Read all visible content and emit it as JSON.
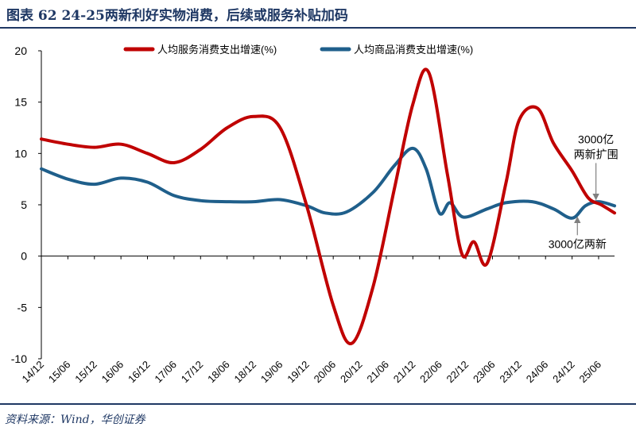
{
  "figure": {
    "title": "图表 62    24-25两新利好实物消费，后续或服务补贴加码",
    "source": "资料来源：Wind，华创证券",
    "accent_color": "#1f3864"
  },
  "chart_data": {
    "type": "line",
    "title": "",
    "xlabel": "",
    "ylabel": "",
    "ylim": [
      -10,
      20
    ],
    "yticks": [
      "20",
      "15",
      "10",
      "5",
      "0",
      "-5",
      "-10"
    ],
    "x_tick_labels": [
      "14/12",
      "15/06",
      "15/12",
      "16/06",
      "16/12",
      "17/06",
      "17/12",
      "18/06",
      "18/12",
      "19/06",
      "19/12",
      "20/06",
      "20/12",
      "21/06",
      "21/12",
      "22/06",
      "22/12",
      "23/06",
      "23/12",
      "24/06",
      "24/12",
      "25/06"
    ],
    "x_axis_start": 0,
    "x_axis_end": 21.6,
    "grid": false,
    "legend_position": "top",
    "series": [
      {
        "name": "人均服务消费支出增速(%)",
        "color": "#c00000",
        "points": [
          [
            0,
            11.4
          ],
          [
            1,
            10.9
          ],
          [
            2,
            10.6
          ],
          [
            3,
            10.9
          ],
          [
            4,
            10.0
          ],
          [
            5,
            9.1
          ],
          [
            6,
            10.4
          ],
          [
            7,
            12.5
          ],
          [
            8,
            13.6
          ],
          [
            9,
            12.5
          ],
          [
            10,
            4.9
          ],
          [
            11,
            -4.8
          ],
          [
            11.7,
            -8.5
          ],
          [
            12.5,
            -3.0
          ],
          [
            13.3,
            6.5
          ],
          [
            14,
            14.8
          ],
          [
            14.6,
            17.9
          ],
          [
            15.3,
            8.0
          ],
          [
            15.85,
            0.2
          ],
          [
            16.3,
            1.4
          ],
          [
            16.8,
            -0.7
          ],
          [
            17.5,
            7.0
          ],
          [
            18,
            13.2
          ],
          [
            18.7,
            14.4
          ],
          [
            19.3,
            11.0
          ],
          [
            20,
            8.3
          ],
          [
            20.6,
            5.7
          ],
          [
            21.1,
            5.0
          ],
          [
            21.6,
            4.2
          ]
        ]
      },
      {
        "name": "人均商品消费支出增速(%)",
        "color": "#1f5f8b",
        "points": [
          [
            0,
            8.5
          ],
          [
            1,
            7.5
          ],
          [
            2,
            7.0
          ],
          [
            3,
            7.6
          ],
          [
            4,
            7.2
          ],
          [
            5,
            5.9
          ],
          [
            6,
            5.4
          ],
          [
            7,
            5.3
          ],
          [
            8,
            5.3
          ],
          [
            9,
            5.5
          ],
          [
            10,
            4.9
          ],
          [
            10.7,
            4.2
          ],
          [
            11.5,
            4.3
          ],
          [
            12.5,
            6.2
          ],
          [
            13.3,
            8.8
          ],
          [
            14,
            10.5
          ],
          [
            14.5,
            8.5
          ],
          [
            15,
            4.2
          ],
          [
            15.4,
            5.2
          ],
          [
            15.9,
            3.8
          ],
          [
            16.8,
            4.6
          ],
          [
            17.5,
            5.2
          ],
          [
            18.5,
            5.3
          ],
          [
            19.3,
            4.6
          ],
          [
            20,
            3.7
          ],
          [
            20.5,
            4.9
          ],
          [
            21,
            5.3
          ],
          [
            21.6,
            4.9
          ]
        ]
      }
    ],
    "annotations": [
      {
        "lines": [
          "3000亿",
          "两新扩围"
        ],
        "x": 20.9,
        "y": 11.0,
        "arrow_to": [
          20.9,
          5.5
        ]
      },
      {
        "lines": [
          "3000亿两新"
        ],
        "x": 20.2,
        "y": 0.8,
        "arrow_to": [
          20.2,
          3.8
        ]
      }
    ]
  }
}
